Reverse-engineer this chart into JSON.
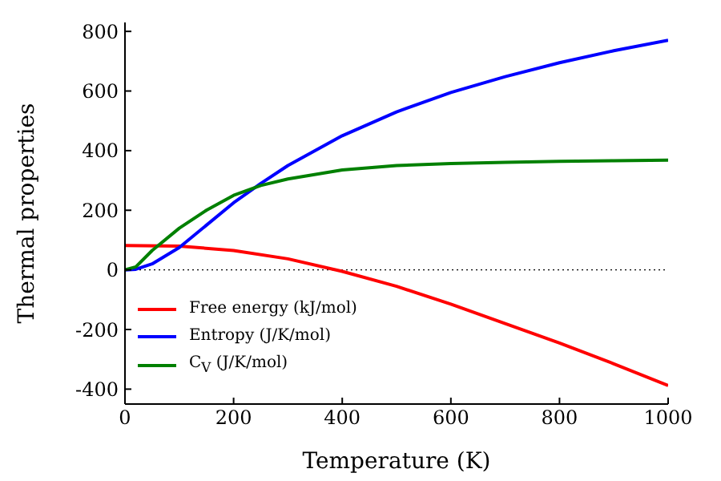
{
  "chart_data": {
    "type": "line",
    "xlabel": "Temperature (K)",
    "ylabel": "Thermal properties",
    "xlim": [
      0,
      1000
    ],
    "xticks": [
      0,
      200,
      400,
      600,
      800,
      1000
    ],
    "ylim": [
      -450,
      830
    ],
    "yticks": [
      -400,
      -200,
      0,
      200,
      400,
      600,
      800
    ],
    "legend": "bottom left",
    "marker": "none",
    "line_style": "solid",
    "ref_lines": [
      {
        "axis": "y",
        "value": 0,
        "color": "#000000",
        "line_style": "dotted"
      }
    ],
    "series": [
      {
        "name": "Free energy (kJ/mol)",
        "color": "#ff0000",
        "x": [
          0,
          100,
          200,
          300,
          400,
          500,
          600,
          700,
          800,
          900,
          1000
        ],
        "values": [
          82,
          80,
          65,
          37,
          -5,
          -55,
          -115,
          -180,
          -245,
          -315,
          -388
        ]
      },
      {
        "name": "Entropy (J/K/mol)",
        "color": "#0000ff",
        "x": [
          0,
          20,
          50,
          100,
          150,
          200,
          250,
          300,
          400,
          500,
          600,
          700,
          800,
          900,
          1000
        ],
        "values": [
          0,
          2,
          20,
          75,
          150,
          225,
          290,
          350,
          450,
          530,
          595,
          648,
          695,
          735,
          770
        ]
      },
      {
        "name": "C$_{V}$ (J/K/mol)",
        "color": "#008000",
        "x": [
          0,
          20,
          50,
          100,
          150,
          200,
          250,
          300,
          400,
          500,
          600,
          700,
          800,
          900,
          1000
        ],
        "values": [
          0,
          10,
          65,
          140,
          200,
          250,
          283,
          305,
          335,
          350,
          357,
          361,
          364,
          366,
          368
        ]
      }
    ]
  }
}
